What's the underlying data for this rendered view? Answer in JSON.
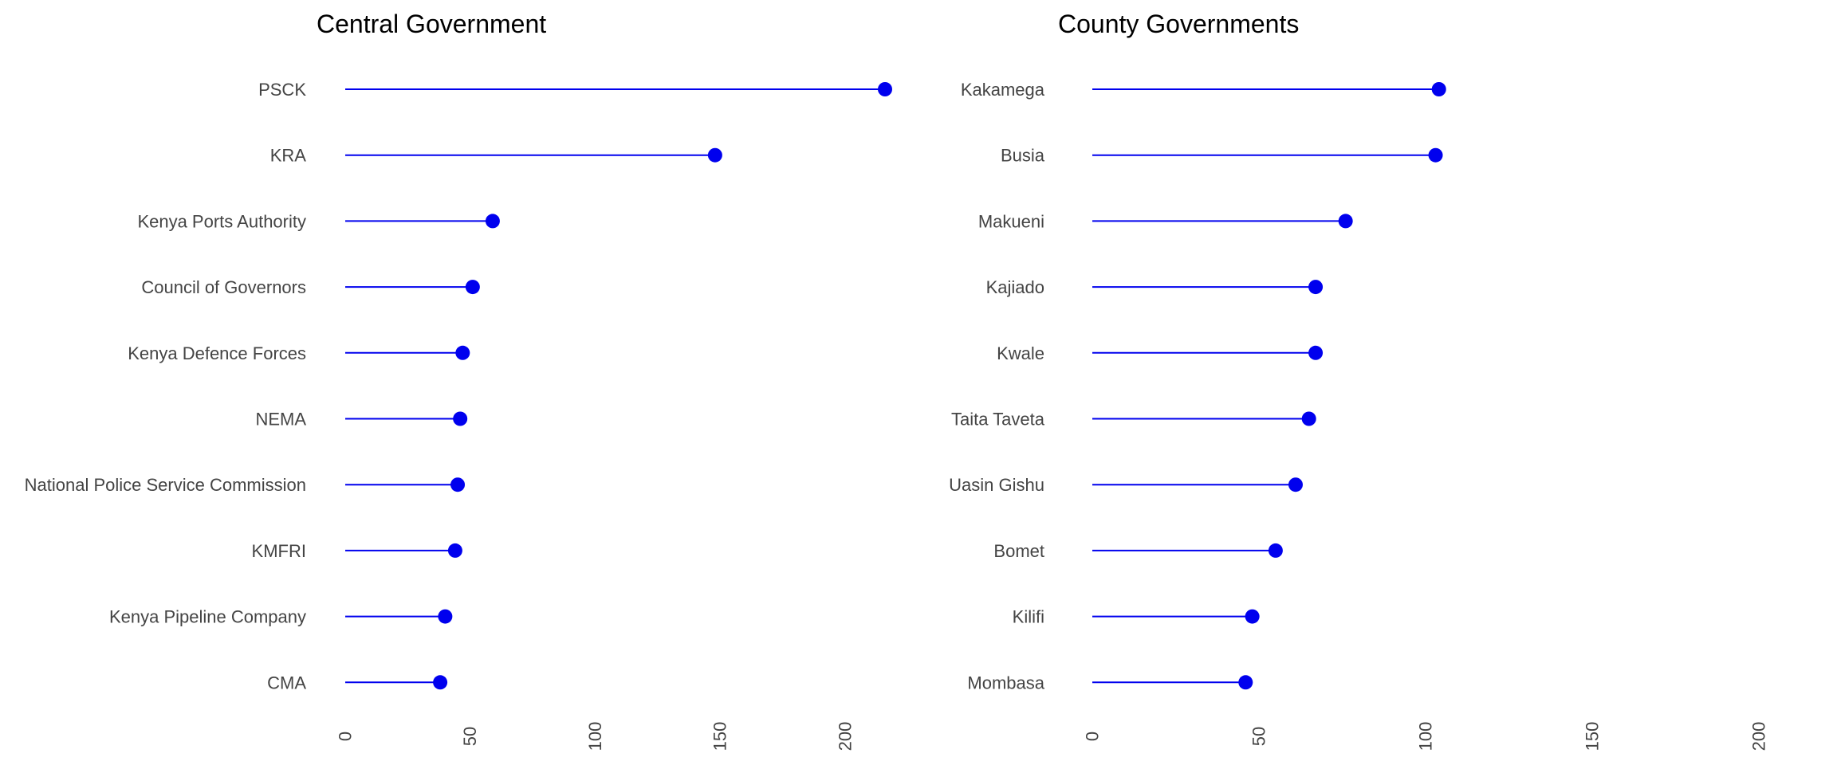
{
  "colors": {
    "line": "#0000EE",
    "point": "#0000EE",
    "text": "#444444",
    "title": "#000000",
    "background": "#FFFFFF"
  },
  "chart_data": [
    {
      "type": "lollipop",
      "orientation": "horizontal",
      "title": "Central Government",
      "categories": [
        "PSCK",
        "KRA",
        "Kenya Ports Authority",
        "Council of Governors",
        "Kenya Defence Forces",
        "NEMA",
        "National Police Service Commission",
        "KMFRI",
        "Kenya Pipeline Company",
        "CMA"
      ],
      "values": [
        216,
        148,
        59,
        51,
        47,
        46,
        45,
        44,
        40,
        38
      ],
      "xlim": [
        0,
        216
      ],
      "xticks": [
        0,
        50,
        100,
        150,
        200
      ],
      "tick_labels": [
        "0",
        "50",
        "100",
        "150",
        "200"
      ],
      "xlabel": "",
      "ylabel": "",
      "grid": false,
      "legend": "none"
    },
    {
      "type": "lollipop",
      "orientation": "horizontal",
      "title": "County Governments",
      "categories": [
        "Kakamega",
        "Busia",
        "Makueni",
        "Kajiado",
        "Kwale",
        "Taita Taveta",
        "Uasin Gishu",
        "Bomet",
        "Kilifi",
        "Mombasa"
      ],
      "values": [
        104,
        103,
        76,
        67,
        67,
        65,
        61,
        55,
        48,
        46
      ],
      "xlim": [
        0,
        200
      ],
      "xticks": [
        0,
        50,
        100,
        150,
        200
      ],
      "tick_labels": [
        "0",
        "50",
        "100",
        "150",
        "200"
      ],
      "xlabel": "",
      "ylabel": "",
      "grid": false,
      "legend": "none"
    }
  ]
}
